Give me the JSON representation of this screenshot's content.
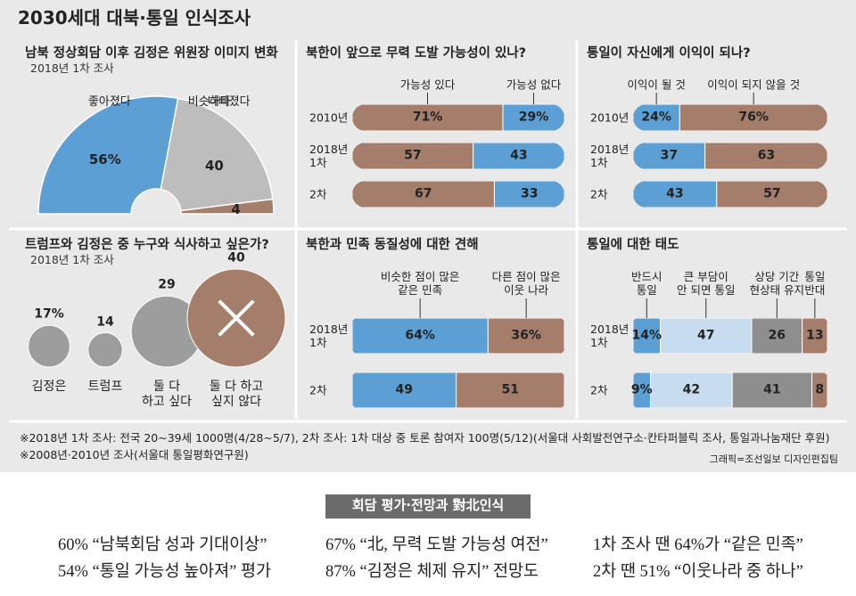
{
  "title": "2030세대 대북·통일 인식조사",
  "chart_data": [
    {
      "type": "pie",
      "title": "남북 정상회담 이후 김정은 위원장 이미지 변화",
      "subtitle": "2018년 1차 조사",
      "categories": [
        "좋아졌다",
        "비슷하다",
        "나빠졌다"
      ],
      "values": [
        56,
        40,
        4
      ],
      "value_labels": [
        "56%",
        "40",
        "4"
      ],
      "colors": [
        "#5b9fd4",
        "#bdbdbd",
        "#a47e6a"
      ]
    },
    {
      "type": "bar",
      "title": "북한이 앞으로 무력 도발 가능성이 있나?",
      "categories": [
        "2010년",
        "2018년\n1차",
        "2차"
      ],
      "series": [
        {
          "name": "가능성 있다",
          "color": "#a47e6a",
          "values": [
            71,
            57,
            67
          ],
          "value_labels": [
            "71%",
            "57",
            "67"
          ]
        },
        {
          "name": "가능성 없다",
          "color": "#5b9fd4",
          "values": [
            29,
            43,
            33
          ],
          "value_labels": [
            "29%",
            "43",
            "33"
          ]
        }
      ]
    },
    {
      "type": "bar",
      "title": "통일이 자신에게 이익이 되나?",
      "categories": [
        "2010년",
        "2018년\n1차",
        "2차"
      ],
      "series": [
        {
          "name": "이익이 될 것",
          "color": "#5b9fd4",
          "values": [
            24,
            37,
            43
          ],
          "value_labels": [
            "24%",
            "37",
            "43"
          ]
        },
        {
          "name": "이익이 되지 않을 것",
          "color": "#a47e6a",
          "values": [
            76,
            63,
            57
          ],
          "value_labels": [
            "76%",
            "63",
            "57"
          ]
        }
      ]
    },
    {
      "type": "bubble",
      "title": "트럼프와 김정은 중 누구와 식사하고 싶은가?",
      "subtitle": "2018년 1차 조사",
      "categories": [
        "김정은",
        "트럼프",
        "둘 다\n하고 싶다",
        "둘 다 하고\n싶지 않다"
      ],
      "values": [
        17,
        14,
        29,
        40
      ],
      "value_labels": [
        "17%",
        "14",
        "29",
        "40"
      ],
      "colors": [
        "#9d9d9d",
        "#9d9d9d",
        "#9d9d9d",
        "#a47e6a"
      ]
    },
    {
      "type": "bar",
      "title": "북한과 민족 동질성에 대한 견해",
      "categories": [
        "2018년\n1차",
        "2차"
      ],
      "series": [
        {
          "name": "비슷한 점이 많은\n같은 민족",
          "color": "#5b9fd4",
          "values": [
            64,
            49
          ],
          "value_labels": [
            "64%",
            "49"
          ]
        },
        {
          "name": "다른 점이 많은\n이웃 나라",
          "color": "#a47e6a",
          "values": [
            36,
            51
          ],
          "value_labels": [
            "36%",
            "51"
          ]
        }
      ]
    },
    {
      "type": "bar",
      "title": "통일에 대한 태도",
      "categories": [
        "2018년\n1차",
        "2차"
      ],
      "series": [
        {
          "name": "반드시\n통일",
          "color": "#5b9fd4",
          "values": [
            14,
            9
          ],
          "value_labels": [
            "14%",
            "9%"
          ]
        },
        {
          "name": "큰 부담이\n안 되면 통일",
          "color": "#c7dcee",
          "values": [
            47,
            42
          ]
        },
        {
          "name": "상당 기간\n현상태 유지",
          "color": "#8e8e8e",
          "values": [
            26,
            41
          ]
        },
        {
          "name": "통일\n반대",
          "color": "#a47e6a",
          "values": [
            13,
            8
          ]
        }
      ]
    }
  ],
  "notes": [
    "※2018년 1차 조사: 전국 20~39세 1000명(4/28~5/7), 2차 조사: 1차 대상 중 토론 참여자 100명(5/12)(서울대 사회발전연구소·칸타퍼블릭 조사, 통일과나눔재단 후원)",
    "※2008년·2010년 조사(서울대 통일평화연구원)"
  ],
  "credit": "그래픽=조선일보 디자인편집팀",
  "summary": {
    "title": "회담 평가·전망과 對北인식",
    "items": [
      [
        "60% “남북회담 성과 기대이상”",
        "54% “통일 가능성 높아져” 평가"
      ],
      [
        "67% “北, 무력 도발 가능성 여전”",
        "87% “김정은 체제 유지” 전망도"
      ],
      [
        "1차 조사 땐 64%가 “같은 민족”",
        "2차 땐 51% “이웃나라 중 하나”"
      ]
    ]
  }
}
